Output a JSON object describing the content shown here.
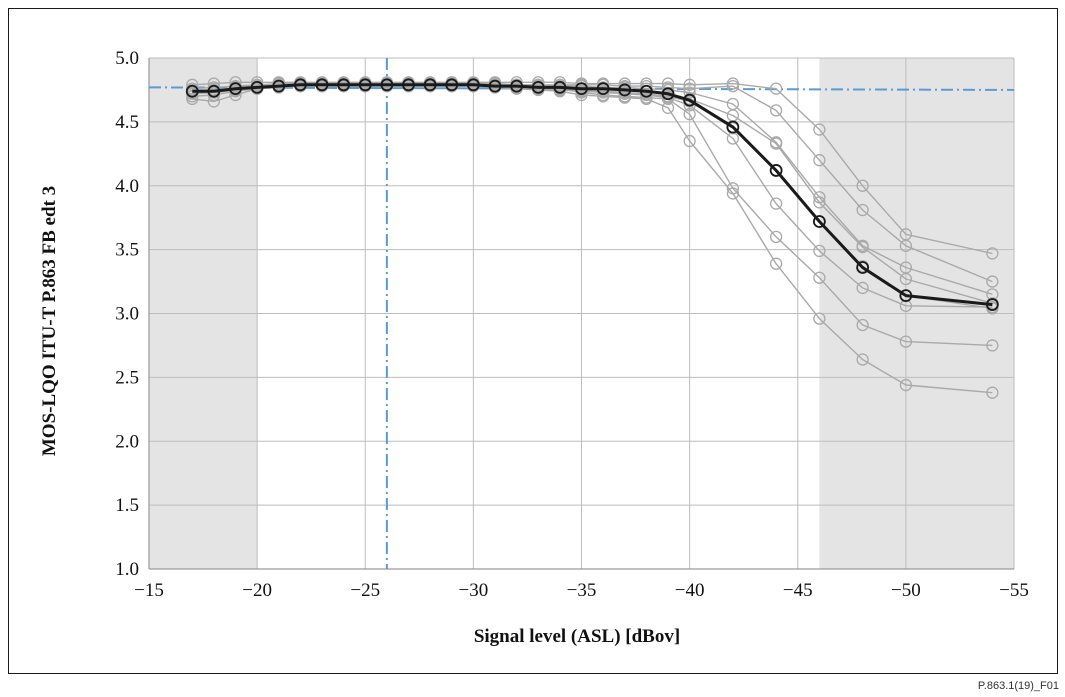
{
  "figure_id": "P.863.1(19)_F01",
  "colors": {
    "grey_band": "#e4e4e4",
    "grid": "#bdbdbd",
    "gray_series": "#a9a9a9",
    "mean_series": "#1a1a1a",
    "reference_line": "#5b9bd5"
  },
  "chart_data": {
    "type": "line",
    "title": "",
    "xlabel": "Signal level (ASL) [dBov]",
    "ylabel": "MOS-LQO ITU-T P.863 FB edt 3",
    "xlim": [
      -15,
      -55
    ],
    "ylim": [
      1.0,
      5.0
    ],
    "x_ticks": [
      -15,
      -20,
      -25,
      -30,
      -35,
      -40,
      -45,
      -50,
      -55
    ],
    "x_tick_labels": [
      "−15",
      "−20",
      "−25",
      "−30",
      "−35",
      "−40",
      "−45",
      "−50",
      "−55"
    ],
    "y_ticks": [
      1.0,
      1.5,
      2.0,
      2.5,
      3.0,
      3.5,
      4.0,
      4.5,
      5.0
    ],
    "y_tick_labels": [
      "1.0",
      "1.5",
      "2.0",
      "2.5",
      "3.0",
      "3.5",
      "4.0",
      "4.5",
      "5.0"
    ],
    "grid": true,
    "legend": "none",
    "shaded_x_ranges": [
      [
        -15,
        -20
      ],
      [
        -46,
        -55
      ]
    ],
    "reference_lines": [
      {
        "orientation": "vertical",
        "x": -26,
        "style": "dash-dot"
      },
      {
        "orientation": "horizontal",
        "points": [
          [
            -15,
            4.77
          ],
          [
            -55,
            4.75
          ]
        ],
        "style": "dash-dot"
      }
    ],
    "x": [
      -17,
      -18,
      -19,
      -20,
      -21,
      -22,
      -23,
      -24,
      -25,
      -26,
      -27,
      -28,
      -29,
      -30,
      -31,
      -32,
      -33,
      -34,
      -35,
      -36,
      -37,
      -38,
      -39,
      -40,
      -42,
      -44,
      -46,
      -48,
      -50,
      -54
    ],
    "series": [
      {
        "values": [
          4.79,
          4.8,
          4.81,
          4.81,
          4.81,
          4.81,
          4.81,
          4.81,
          4.81,
          4.81,
          4.81,
          4.81,
          4.81,
          4.81,
          4.81,
          4.81,
          4.81,
          4.81,
          4.8,
          4.8,
          4.8,
          4.8,
          4.8,
          4.79,
          4.8,
          4.76,
          4.44,
          4.0,
          3.62,
          3.47
        ]
      },
      {
        "values": [
          4.76,
          4.77,
          4.78,
          4.79,
          4.8,
          4.8,
          4.8,
          4.8,
          4.8,
          4.8,
          4.8,
          4.8,
          4.8,
          4.8,
          4.8,
          4.79,
          4.79,
          4.79,
          4.79,
          4.79,
          4.78,
          4.78,
          4.77,
          4.76,
          4.78,
          4.59,
          4.2,
          3.81,
          3.53,
          3.25
        ]
      },
      {
        "values": [
          4.74,
          4.75,
          4.77,
          4.78,
          4.79,
          4.79,
          4.8,
          4.8,
          4.8,
          4.8,
          4.8,
          4.8,
          4.8,
          4.8,
          4.79,
          4.79,
          4.79,
          4.78,
          4.78,
          4.77,
          4.77,
          4.76,
          4.75,
          4.73,
          4.64,
          4.34,
          3.91,
          3.53,
          3.36,
          3.15
        ]
      },
      {
        "values": [
          4.72,
          4.73,
          4.75,
          4.77,
          4.78,
          4.79,
          4.79,
          4.79,
          4.79,
          4.79,
          4.79,
          4.79,
          4.79,
          4.79,
          4.78,
          4.78,
          4.78,
          4.77,
          4.76,
          4.76,
          4.75,
          4.74,
          4.72,
          4.68,
          4.55,
          4.33,
          3.87,
          3.52,
          3.27,
          3.08
        ]
      },
      {
        "values": [
          4.7,
          4.71,
          4.74,
          4.76,
          4.77,
          4.78,
          4.78,
          4.78,
          4.78,
          4.78,
          4.78,
          4.78,
          4.78,
          4.78,
          4.77,
          4.77,
          4.76,
          4.76,
          4.75,
          4.74,
          4.73,
          4.72,
          4.7,
          4.66,
          4.45,
          4.12,
          3.72,
          3.37,
          3.14,
          3.04
        ]
      },
      {
        "values": [
          4.68,
          4.66,
          4.71,
          4.76,
          4.77,
          4.78,
          4.78,
          4.78,
          4.78,
          4.78,
          4.78,
          4.78,
          4.78,
          4.78,
          4.77,
          4.76,
          4.75,
          4.75,
          4.74,
          4.73,
          4.72,
          4.71,
          4.69,
          4.63,
          4.37,
          3.86,
          3.49,
          3.2,
          3.06,
          3.05
        ]
      },
      {
        "values": [
          4.75,
          4.75,
          4.76,
          4.77,
          4.78,
          4.79,
          4.79,
          4.79,
          4.79,
          4.79,
          4.79,
          4.79,
          4.79,
          4.79,
          4.78,
          4.77,
          4.76,
          4.76,
          4.73,
          4.71,
          4.7,
          4.69,
          4.68,
          4.56,
          3.98,
          3.6,
          3.28,
          2.91,
          2.78,
          2.75
        ]
      },
      {
        "values": [
          4.73,
          4.74,
          4.75,
          4.76,
          4.77,
          4.78,
          4.78,
          4.78,
          4.78,
          4.78,
          4.78,
          4.78,
          4.78,
          4.78,
          4.77,
          4.76,
          4.75,
          4.74,
          4.71,
          4.7,
          4.69,
          4.68,
          4.61,
          4.35,
          3.94,
          3.39,
          2.96,
          2.64,
          2.44,
          2.38
        ]
      },
      {
        "values": [
          4.74,
          4.74,
          4.76,
          4.77,
          4.78,
          4.79,
          4.79,
          4.79,
          4.79,
          4.79,
          4.79,
          4.79,
          4.79,
          4.79,
          4.78,
          4.78,
          4.77,
          4.77,
          4.76,
          4.76,
          4.75,
          4.74,
          4.72,
          4.67,
          4.46,
          4.12,
          3.72,
          3.36,
          3.14,
          3.07
        ],
        "emphasis": true
      }
    ]
  }
}
